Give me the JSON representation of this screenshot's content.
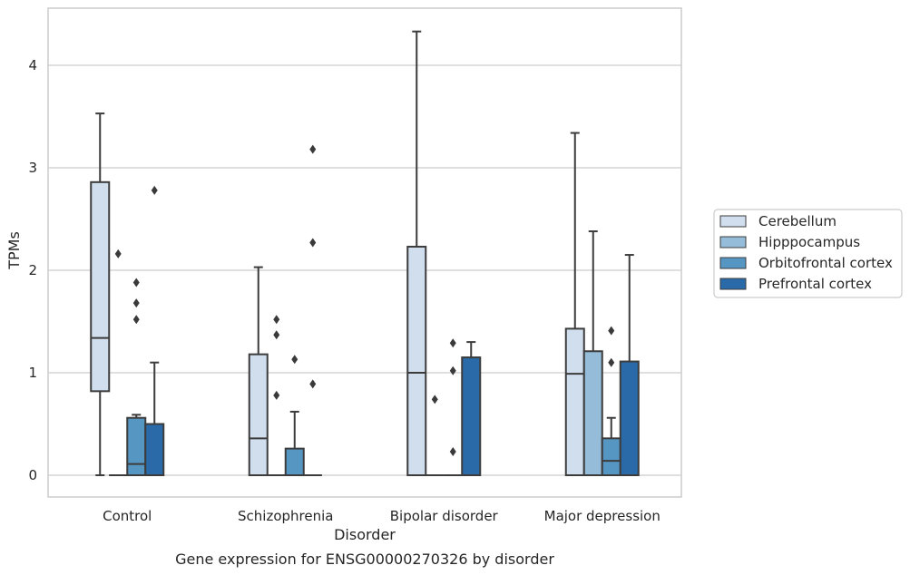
{
  "chart_data": {
    "type": "box",
    "title": "",
    "caption": "Gene expression for ENSG00000270326 by disorder",
    "xlabel": "Disorder",
    "ylabel": "TPMs",
    "ylim": [
      -0.2,
      4.55
    ],
    "yticks": [
      0,
      1,
      2,
      3,
      4
    ],
    "grid": "horizontal",
    "legend_position": "right",
    "categories": [
      "Control",
      "Schizophrenia",
      "Bipolar disorder",
      "Major depression"
    ],
    "series": [
      {
        "name": "Cerebellum",
        "color": "#d0deee",
        "boxes": [
          {
            "q1": 0.82,
            "median": 1.34,
            "q3": 2.86,
            "whisker_low": 0.0,
            "whisker_high": 3.53,
            "outliers": []
          },
          {
            "q1": 0.0,
            "median": 0.36,
            "q3": 1.18,
            "whisker_low": 0.0,
            "whisker_high": 2.03,
            "outliers": []
          },
          {
            "q1": 0.0,
            "median": 1.0,
            "q3": 2.23,
            "whisker_low": 0.0,
            "whisker_high": 4.33,
            "outliers": []
          },
          {
            "q1": 0.0,
            "median": 0.99,
            "q3": 1.43,
            "whisker_low": 0.0,
            "whisker_high": 3.34,
            "outliers": []
          }
        ]
      },
      {
        "name": "Hipppocampus",
        "color": "#95bdd9",
        "boxes": [
          {
            "q1": 0.0,
            "median": 0.0,
            "q3": 0.0,
            "whisker_low": 0.0,
            "whisker_high": 0.0,
            "outliers": [
              2.16
            ]
          },
          {
            "q1": 0.0,
            "median": 0.0,
            "q3": 0.0,
            "whisker_low": 0.0,
            "whisker_high": 0.0,
            "outliers": [
              0.78,
              1.37,
              1.52
            ]
          },
          {
            "q1": 0.0,
            "median": 0.0,
            "q3": 0.0,
            "whisker_low": 0.0,
            "whisker_high": 0.0,
            "outliers": [
              0.74
            ]
          },
          {
            "q1": 0.0,
            "median": 0.0,
            "q3": 1.21,
            "whisker_low": 0.0,
            "whisker_high": 2.38,
            "outliers": []
          }
        ]
      },
      {
        "name": "Orbitofrontal cortex",
        "color": "#5696c3",
        "boxes": [
          {
            "q1": 0.0,
            "median": 0.11,
            "q3": 0.56,
            "whisker_low": 0.0,
            "whisker_high": 0.59,
            "outliers": [
              1.52,
              1.68,
              1.88
            ]
          },
          {
            "q1": 0.0,
            "median": 0.0,
            "q3": 0.26,
            "whisker_low": 0.0,
            "whisker_high": 0.62,
            "outliers": [
              1.13
            ]
          },
          {
            "q1": 0.0,
            "median": 0.0,
            "q3": 0.0,
            "whisker_low": 0.0,
            "whisker_high": 0.0,
            "outliers": [
              0.23,
              1.02,
              1.29
            ]
          },
          {
            "q1": 0.0,
            "median": 0.14,
            "q3": 0.36,
            "whisker_low": 0.0,
            "whisker_high": 0.56,
            "outliers": [
              1.1,
              1.41
            ]
          }
        ]
      },
      {
        "name": "Prefrontal cortex",
        "color": "#2a6aa8",
        "boxes": [
          {
            "q1": 0.0,
            "median": 0.0,
            "q3": 0.5,
            "whisker_low": 0.0,
            "whisker_high": 1.1,
            "outliers": [
              2.78
            ]
          },
          {
            "q1": 0.0,
            "median": 0.0,
            "q3": 0.0,
            "whisker_low": 0.0,
            "whisker_high": 0.0,
            "outliers": [
              0.89,
              2.27,
              3.18
            ]
          },
          {
            "q1": 0.0,
            "median": 0.0,
            "q3": 1.15,
            "whisker_low": 0.0,
            "whisker_high": 1.3,
            "outliers": []
          },
          {
            "q1": 0.0,
            "median": 0.0,
            "q3": 1.11,
            "whisker_low": 0.0,
            "whisker_high": 2.15,
            "outliers": []
          }
        ]
      }
    ]
  },
  "colors": {
    "grid": "#cccccc",
    "axes_edge": "#cccccc",
    "line": "#3c3c3c",
    "background": "#ffffff"
  }
}
